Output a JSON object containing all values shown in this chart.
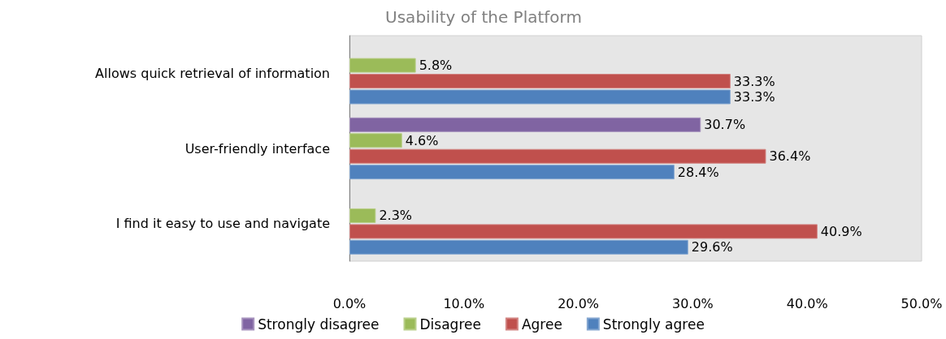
{
  "chart_data": {
    "type": "bar",
    "orientation": "horizontal",
    "title": "Usability of the Platform",
    "categories": [
      "Allows quick retrieval of information",
      "User-friendly interface",
      "I find it easy to use and navigate"
    ],
    "series": [
      {
        "name": "Strongly disagree",
        "color": "#8064a2",
        "values": [
          null,
          30.7,
          null
        ],
        "value_labels": [
          null,
          "30.7%",
          null
        ]
      },
      {
        "name": "Disagree",
        "color": "#9bbb59",
        "values": [
          5.8,
          4.6,
          2.3
        ],
        "value_labels": [
          "5.8%",
          "4.6%",
          "2.3%"
        ]
      },
      {
        "name": "Agree",
        "color": "#c0504d",
        "values": [
          33.3,
          36.4,
          40.9
        ],
        "value_labels": [
          "33.3%",
          "36.4%",
          "40.9%"
        ]
      },
      {
        "name": "Strongly agree",
        "color": "#4f81bd",
        "values": [
          33.3,
          28.4,
          29.6
        ],
        "value_labels": [
          "33.3%",
          "28.4%",
          "29.6%"
        ]
      }
    ],
    "xlim": [
      0,
      50
    ],
    "xticks": [
      {
        "value": 0,
        "label": "0.0%"
      },
      {
        "value": 10,
        "label": "10.0%"
      },
      {
        "value": 20,
        "label": "20.0%"
      },
      {
        "value": 30,
        "label": "30.0%"
      },
      {
        "value": 40,
        "label": "40.0%"
      },
      {
        "value": 50,
        "label": "50.0%"
      }
    ],
    "legend": "bottom",
    "grid": false
  }
}
